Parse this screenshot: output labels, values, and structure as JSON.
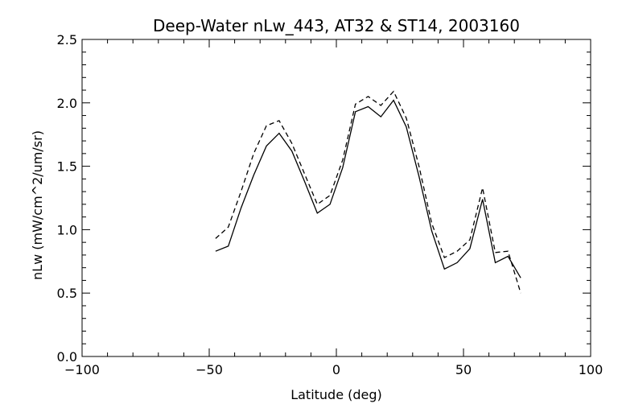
{
  "chart_data": {
    "type": "line",
    "title": "Deep-Water nLw_443, AT32 & ST14, 2003160",
    "xlabel": "Latitude (deg)",
    "ylabel": "nLw (mW/cm^2/um/sr)",
    "xlim": [
      -100,
      100
    ],
    "ylim": [
      0.0,
      2.5
    ],
    "xticks": [
      -100,
      -50,
      0,
      50,
      100
    ],
    "xtick_labels": [
      "−100",
      "−50",
      "0",
      "50",
      "100"
    ],
    "yticks": [
      0.0,
      0.5,
      1.0,
      1.5,
      2.0,
      2.5
    ],
    "ytick_labels": [
      "0.0",
      "0.5",
      "1.0",
      "1.5",
      "2.0",
      "2.5"
    ],
    "grid": false,
    "legend": false,
    "series": [
      {
        "style": "solid",
        "color": "#000000",
        "x": [
          -47.5,
          -42.5,
          -37.5,
          -32.5,
          -27.5,
          -22.5,
          -17.5,
          -12.5,
          -7.5,
          -2.5,
          2.5,
          7.5,
          12.5,
          17.5,
          22.5,
          27.5,
          32.5,
          37.5,
          42.5,
          47.5,
          52.5,
          57.5,
          62.5,
          67.5,
          72.5
        ],
        "y": [
          0.83,
          0.87,
          1.17,
          1.43,
          1.66,
          1.76,
          1.62,
          1.38,
          1.13,
          1.2,
          1.49,
          1.93,
          1.97,
          1.89,
          2.02,
          1.81,
          1.42,
          0.99,
          0.69,
          0.74,
          0.85,
          1.24,
          0.74,
          0.79,
          0.62
        ]
      },
      {
        "style": "dashed",
        "color": "#000000",
        "x": [
          -47.5,
          -42.5,
          -37.5,
          -32.5,
          -27.5,
          -22.5,
          -17.5,
          -12.5,
          -7.5,
          -2.5,
          2.5,
          7.5,
          12.5,
          17.5,
          22.5,
          27.5,
          32.5,
          37.5,
          42.5,
          47.5,
          52.5,
          57.5,
          62.5,
          67.5,
          72.5
        ],
        "y": [
          0.93,
          1.02,
          1.3,
          1.6,
          1.82,
          1.86,
          1.68,
          1.44,
          1.2,
          1.27,
          1.55,
          1.99,
          2.05,
          1.98,
          2.09,
          1.88,
          1.5,
          1.05,
          0.78,
          0.83,
          0.92,
          1.33,
          0.82,
          0.83,
          0.5
        ]
      }
    ]
  }
}
